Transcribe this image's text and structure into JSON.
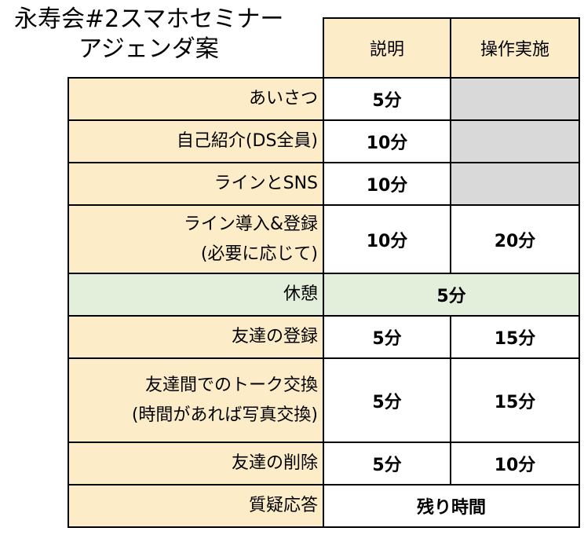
{
  "title": {
    "line1": "永寿会#2スマホセミナー",
    "line2": "アジェンダ案"
  },
  "headers": {
    "explanation": "説明",
    "practice": "操作実施"
  },
  "rows": [
    {
      "label": "あいさつ",
      "explanation": "5分",
      "practice": ""
    },
    {
      "label": "自己紹介(DS全員)",
      "explanation": "10分",
      "practice": ""
    },
    {
      "label": "ラインとSNS",
      "explanation": "10分",
      "practice": ""
    },
    {
      "label_line1": "ライン導入&登録",
      "label_line2": "(必要に応じて)",
      "explanation": "10分",
      "practice": "20分"
    },
    {
      "label": "休憩",
      "combined": "5分"
    },
    {
      "label": "友達の登録",
      "explanation": "5分",
      "practice": "15分"
    },
    {
      "label_line1": "友達間でのトーク交換",
      "label_line2": "(時間があれば写真交換)",
      "explanation": "5分",
      "practice": "15分"
    },
    {
      "label": "友達の削除",
      "explanation": "5分",
      "practice": "10分"
    },
    {
      "label": "質疑応答",
      "combined": "残り時間"
    }
  ],
  "colors": {
    "label_bg": "#fdecc8",
    "break_bg": "#e3efdb",
    "disabled_cell": "#d9d9d9"
  }
}
